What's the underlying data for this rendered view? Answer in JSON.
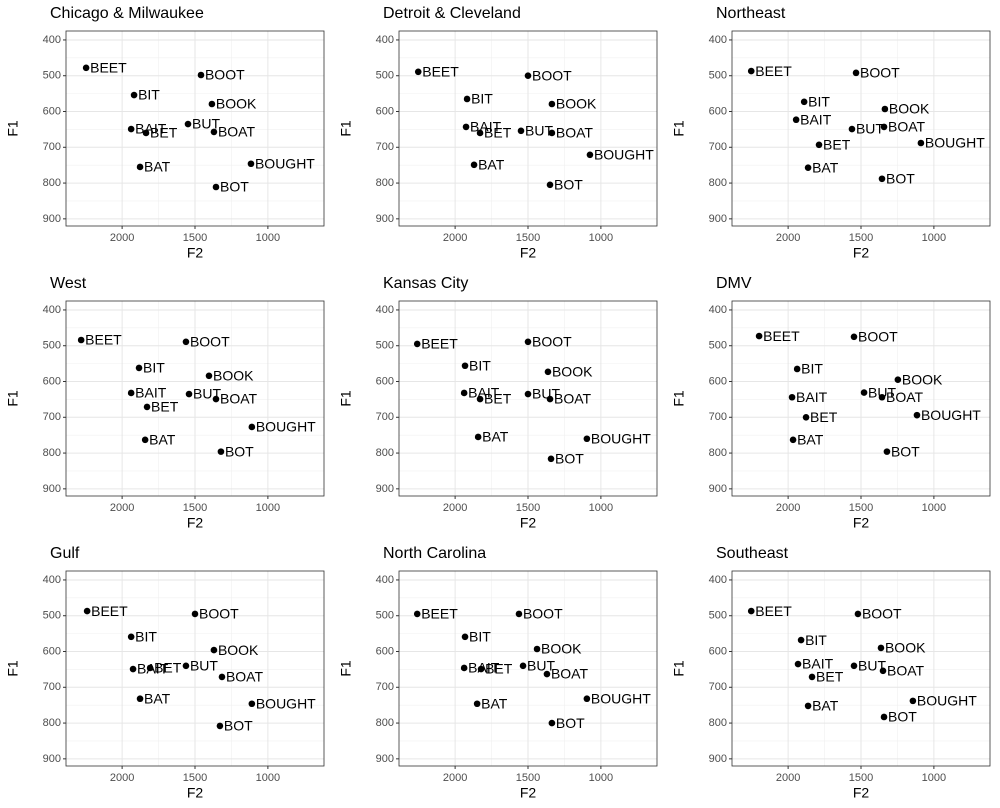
{
  "chart_data": [
    {
      "type": "scatter",
      "title": "Chicago & Milwaukee",
      "x_label": "F2",
      "y_label": "F1",
      "labels": [
        "BEET",
        "BOOT",
        "BIT",
        "BOOK",
        "BUT",
        "BAIT",
        "BET",
        "BOAT",
        "BOUGHT",
        "BAT",
        "BOT"
      ],
      "x": [
        2247,
        1459,
        1918,
        1384,
        1548,
        1938,
        1836,
        1370,
        1116,
        1877,
        1356
      ],
      "values": [
        478,
        498,
        554,
        579,
        635,
        649,
        660,
        657,
        746,
        755,
        811
      ],
      "xlim": [
        2385,
        615
      ],
      "ylim": [
        920,
        375
      ],
      "xticks": [
        2000,
        1500,
        1000
      ],
      "yticks": [
        400,
        500,
        600,
        700,
        800,
        900
      ],
      "grid": true,
      "color": "#000000"
    },
    {
      "type": "scatter",
      "title": "Detroit & Cleveland",
      "x_label": "F2",
      "y_label": "F1",
      "labels": [
        "BEET",
        "BOOT",
        "BIT",
        "BOOK",
        "BAIT",
        "BET",
        "BUT",
        "BOAT",
        "BOUGHT",
        "BAT",
        "BOT"
      ],
      "x": [
        2253,
        1500,
        1918,
        1336,
        1925,
        1829,
        1548,
        1336,
        1075,
        1870,
        1349
      ],
      "values": [
        489,
        500,
        565,
        579,
        643,
        660,
        654,
        660,
        721,
        749,
        805
      ],
      "xlim": [
        2385,
        615
      ],
      "ylim": [
        920,
        375
      ],
      "xticks": [
        2000,
        1500,
        1000
      ],
      "yticks": [
        400,
        500,
        600,
        700,
        800,
        900
      ],
      "grid": true,
      "color": "#000000"
    },
    {
      "type": "scatter",
      "title": "Northeast",
      "x_label": "F2",
      "y_label": "F1",
      "labels": [
        "BEET",
        "BOOT",
        "BIT",
        "BOOK",
        "BAIT",
        "BUT",
        "BOAT",
        "BET",
        "BOUGHT",
        "BAT",
        "BOT"
      ],
      "x": [
        2253,
        1534,
        1890,
        1336,
        1945,
        1562,
        1342,
        1788,
        1089,
        1863,
        1356
      ],
      "values": [
        487,
        492,
        573,
        593,
        623,
        649,
        643,
        693,
        688,
        757,
        788
      ],
      "xlim": [
        2385,
        615
      ],
      "ylim": [
        920,
        375
      ],
      "xticks": [
        2000,
        1500,
        1000
      ],
      "yticks": [
        400,
        500,
        600,
        700,
        800,
        900
      ],
      "grid": true,
      "color": "#000000"
    },
    {
      "type": "scatter",
      "title": "West",
      "x_label": "F2",
      "y_label": "F1",
      "labels": [
        "BEET",
        "BOOT",
        "BIT",
        "BOOK",
        "BAIT",
        "BUT",
        "BET",
        "BOAT",
        "BOUGHT",
        "BAT",
        "BOT"
      ],
      "x": [
        2281,
        1562,
        1884,
        1404,
        1938,
        1541,
        1829,
        1356,
        1110,
        1842,
        1322
      ],
      "values": [
        484,
        489,
        562,
        584,
        632,
        635,
        671,
        649,
        727,
        763,
        796
      ],
      "xlim": [
        2385,
        615
      ],
      "ylim": [
        920,
        375
      ],
      "xticks": [
        2000,
        1500,
        1000
      ],
      "yticks": [
        400,
        500,
        600,
        700,
        800,
        900
      ],
      "grid": true,
      "color": "#000000"
    },
    {
      "type": "scatter",
      "title": "Kansas City",
      "x_label": "F2",
      "y_label": "F1",
      "labels": [
        "BEET",
        "BOOT",
        "BIT",
        "BOOK",
        "BAIT",
        "BET",
        "BUT",
        "BOAT",
        "BOUGHT",
        "BAT",
        "BOT"
      ],
      "x": [
        2260,
        1500,
        1932,
        1363,
        1938,
        1829,
        1500,
        1349,
        1096,
        1842,
        1342
      ],
      "values": [
        495,
        489,
        556,
        573,
        632,
        649,
        635,
        649,
        760,
        755,
        816
      ],
      "xlim": [
        2385,
        615
      ],
      "ylim": [
        920,
        375
      ],
      "xticks": [
        2000,
        1500,
        1000
      ],
      "yticks": [
        400,
        500,
        600,
        700,
        800,
        900
      ],
      "grid": true,
      "color": "#000000"
    },
    {
      "type": "scatter",
      "title": "DMV",
      "x_label": "F2",
      "y_label": "F1",
      "labels": [
        "BEET",
        "BOOT",
        "BIT",
        "BOOK",
        "BAIT",
        "BUT",
        "BOAT",
        "BET",
        "BOUGHT",
        "BAT",
        "BOT"
      ],
      "x": [
        2199,
        1548,
        1938,
        1247,
        1973,
        1479,
        1356,
        1877,
        1116,
        1966,
        1322
      ],
      "values": [
        473,
        475,
        565,
        595,
        644,
        631,
        644,
        700,
        694,
        763,
        796
      ],
      "xlim": [
        2385,
        615
      ],
      "ylim": [
        920,
        375
      ],
      "xticks": [
        2000,
        1500,
        1000
      ],
      "yticks": [
        400,
        500,
        600,
        700,
        800,
        900
      ],
      "grid": true,
      "color": "#000000"
    },
    {
      "type": "scatter",
      "title": "Gulf",
      "x_label": "F2",
      "y_label": "F1",
      "labels": [
        "BEET",
        "BOOT",
        "BIT",
        "BOOK",
        "BAIT",
        "BET",
        "BUT",
        "BOAT",
        "BOUGHT",
        "BAT",
        "BOT"
      ],
      "x": [
        2240,
        1500,
        1938,
        1370,
        1925,
        1808,
        1562,
        1315,
        1110,
        1877,
        1329
      ],
      "values": [
        487,
        495,
        559,
        596,
        649,
        646,
        640,
        671,
        746,
        732,
        808
      ],
      "xlim": [
        2385,
        615
      ],
      "ylim": [
        920,
        375
      ],
      "xticks": [
        2000,
        1500,
        1000
      ],
      "yticks": [
        400,
        500,
        600,
        700,
        800,
        900
      ],
      "grid": true,
      "color": "#000000"
    },
    {
      "type": "scatter",
      "title": "North Carolina",
      "x_label": "F2",
      "y_label": "F1",
      "labels": [
        "BEET",
        "BOOT",
        "BIT",
        "BOOK",
        "BAIT",
        "BET",
        "BUT",
        "BOAT",
        "BOUGHT",
        "BAT",
        "BOT"
      ],
      "x": [
        2260,
        1562,
        1932,
        1438,
        1938,
        1822,
        1534,
        1370,
        1096,
        1849,
        1336
      ],
      "values": [
        495,
        495,
        559,
        593,
        646,
        649,
        640,
        663,
        732,
        746,
        800
      ],
      "xlim": [
        2385,
        615
      ],
      "ylim": [
        920,
        375
      ],
      "xticks": [
        2000,
        1500,
        1000
      ],
      "yticks": [
        400,
        500,
        600,
        700,
        800,
        900
      ],
      "grid": true,
      "color": "#000000"
    },
    {
      "type": "scatter",
      "title": "Southeast",
      "x_label": "F2",
      "y_label": "F1",
      "labels": [
        "BEET",
        "BOOT",
        "BIT",
        "BOOK",
        "BAIT",
        "BUT",
        "BOAT",
        "BET",
        "BOUGHT",
        "BAT",
        "BOT"
      ],
      "x": [
        2253,
        1521,
        1911,
        1363,
        1932,
        1548,
        1349,
        1836,
        1144,
        1863,
        1342
      ],
      "values": [
        487,
        495,
        568,
        590,
        635,
        640,
        654,
        671,
        738,
        752,
        783
      ],
      "xlim": [
        2385,
        615
      ],
      "ylim": [
        920,
        375
      ],
      "xticks": [
        2000,
        1500,
        1000
      ],
      "yticks": [
        400,
        500,
        600,
        700,
        800,
        900
      ],
      "grid": true,
      "color": "#000000"
    }
  ]
}
